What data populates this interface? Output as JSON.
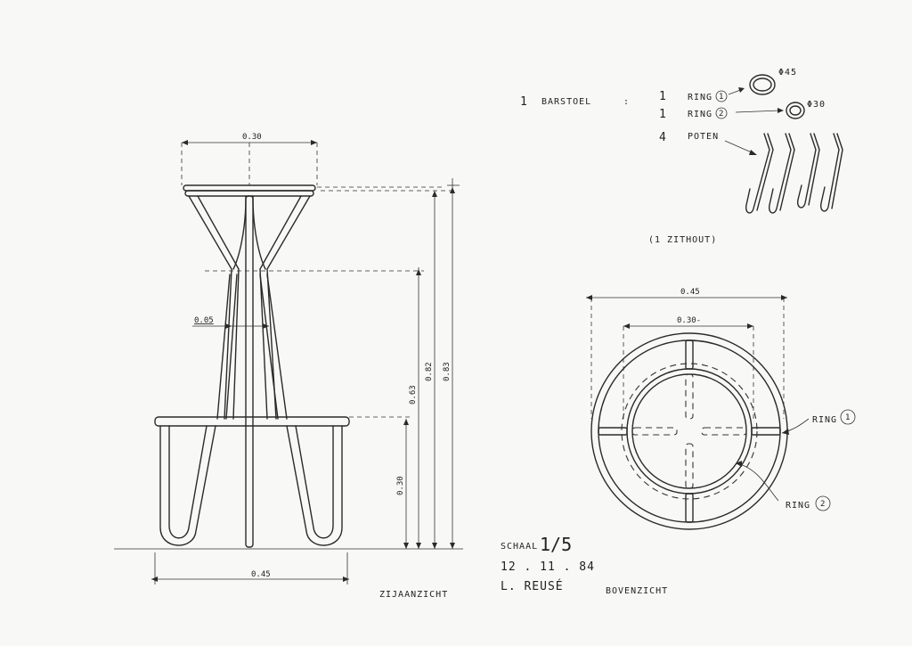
{
  "colors": {
    "paper": "#f8f8f6",
    "ink": "#2a2a2a"
  },
  "side_view": {
    "label": "ZIJAANZICHT",
    "dim_seat_width": "0.30",
    "dim_leg_gap": "0.05",
    "dim_base_width": "0.45",
    "dim_footrest_height": "0.30",
    "dim_waist_height": "0.63",
    "dim_seat_height": "0.82",
    "dim_total_height": "0.83"
  },
  "parts_list": {
    "product_qty": "1",
    "product_name": "BARSTOEL",
    "separator": ":",
    "items": [
      {
        "qty": "1",
        "name": "RING",
        "num": "1",
        "size": "Φ45"
      },
      {
        "qty": "1",
        "name": "RING",
        "num": "2",
        "size": "Φ30"
      },
      {
        "qty": "4",
        "name": "POTEN"
      }
    ],
    "note": "(1 ZITHOUT)"
  },
  "top_view": {
    "label": "BOVENZICHT",
    "dim_outer": "0.45",
    "dim_inner": "0.30-",
    "ring1_label": "RING",
    "ring1_num": "1",
    "ring2_label": "RING",
    "ring2_num": "2"
  },
  "title_block": {
    "scale_label": "SCHAAL",
    "scale_value": "1/5",
    "date": "12 . 11 . 84",
    "author": "L. REUSÉ"
  }
}
